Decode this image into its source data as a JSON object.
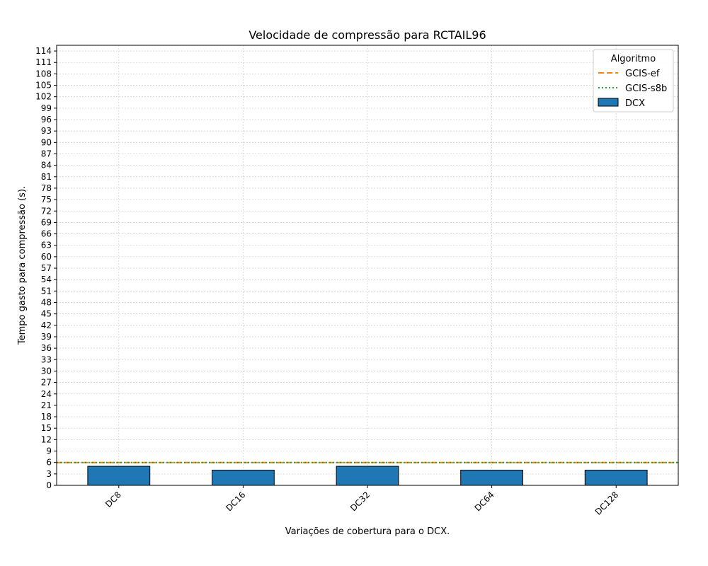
{
  "chart_data": {
    "type": "bar",
    "title": "Velocidade de compressão para  RCTAIL96",
    "xlabel": "Variações de cobertura para o DCX.",
    "ylabel": "Tempo gasto para compressão (s).",
    "categories": [
      "DC8",
      "DC16",
      "DC32",
      "DC64",
      "DC128"
    ],
    "series": [
      {
        "name": "DCX",
        "values": [
          5,
          4,
          5,
          4,
          4
        ],
        "color": "#1f77b4"
      }
    ],
    "reference_lines": [
      {
        "name": "GCIS-ef",
        "value": 6,
        "color": "#ff7f0e",
        "style": "dashed"
      },
      {
        "name": "GCIS-s8b",
        "value": 6,
        "color": "#2ca02c",
        "style": "dotted"
      }
    ],
    "ylim": [
      0,
      115.5
    ],
    "yticks": [
      0,
      3,
      6,
      9,
      12,
      15,
      18,
      21,
      24,
      27,
      30,
      33,
      36,
      39,
      42,
      45,
      48,
      51,
      54,
      57,
      60,
      63,
      66,
      69,
      72,
      75,
      78,
      81,
      84,
      87,
      90,
      93,
      96,
      99,
      102,
      105,
      108,
      111,
      114
    ],
    "grid": true,
    "legend": {
      "title": "Algoritmo",
      "placement": "top-right"
    }
  }
}
